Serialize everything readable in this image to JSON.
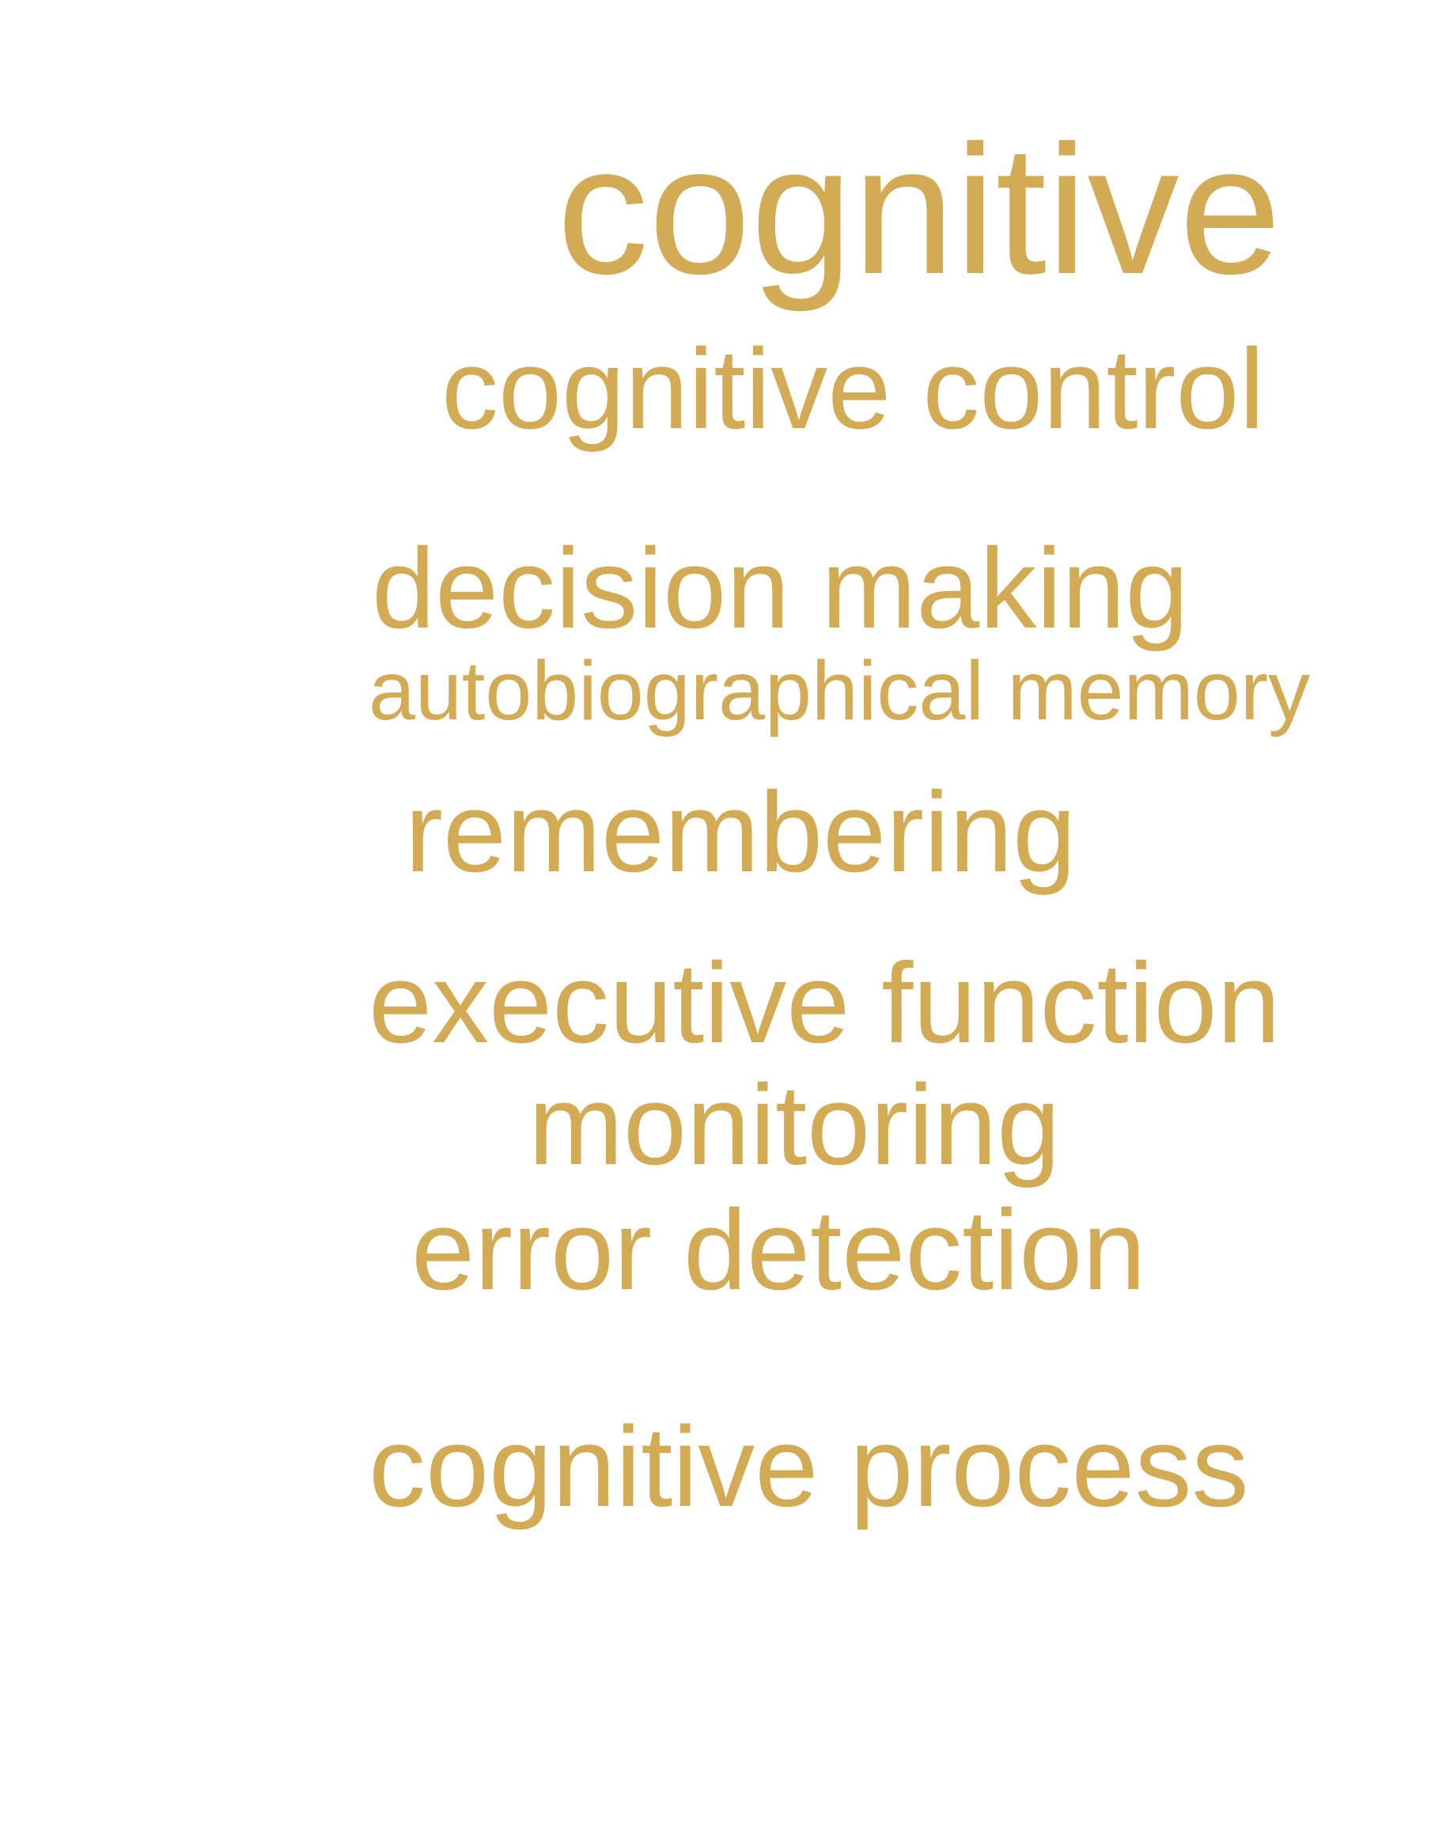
{
  "word_cloud": {
    "color": "#D4AB55",
    "terms": [
      "cognitive",
      "cognitive control",
      "decision making",
      "autobiographical memory",
      "remembering",
      "executive function",
      "monitoring",
      "error detection",
      "cognitive process"
    ]
  }
}
